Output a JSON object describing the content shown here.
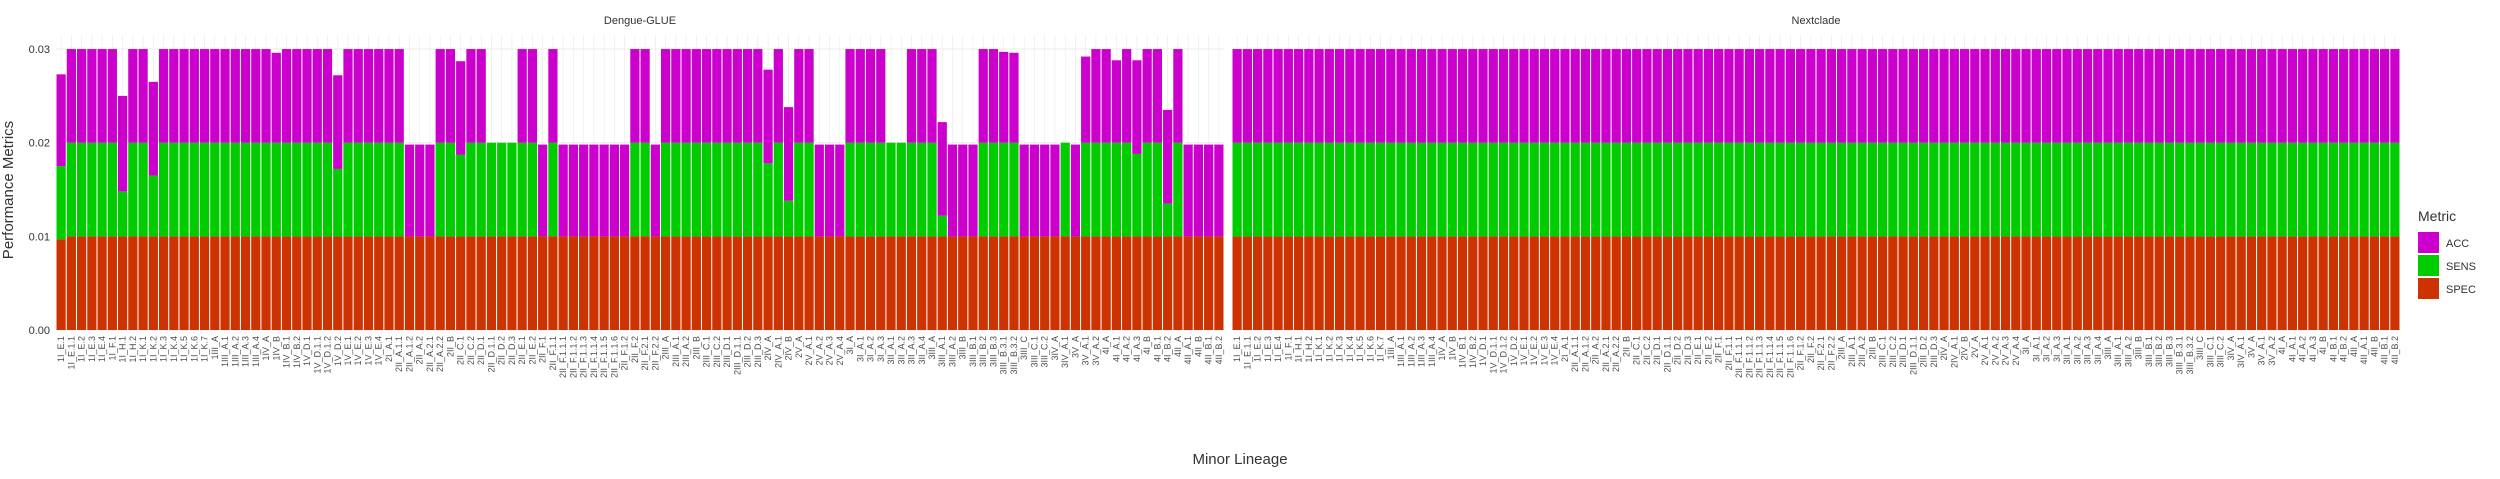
{
  "chart_data": [
    {
      "type": "bar",
      "stacked": true,
      "title": "Dengue-GLUE",
      "categories": [
        "1I_E.1",
        "1I_E.1.1",
        "1I_E.2",
        "1I_E.3",
        "1I_E.4",
        "1I_F.1",
        "1I_H.1",
        "1I_H.2",
        "1I_K.1",
        "1I_K.2",
        "1I_K.3",
        "1I_K.4",
        "1I_K.5",
        "1I_K.6",
        "1I_K.7",
        "1III_A",
        "1III_A.1",
        "1III_A.2",
        "1III_A.3",
        "1III_A.4",
        "1IV_A",
        "1IV_B",
        "1IV_B.1",
        "1IV_B.2",
        "1V_D.1",
        "1V_D.1.1",
        "1V_D.1.2",
        "1V_D.2",
        "1V_E.1",
        "1V_E.2",
        "1V_E.3",
        "1V_E.4",
        "2I_A.1",
        "2II_A.1.1",
        "2II_A.1.2",
        "2II_A.2",
        "2II_A.2.1",
        "2II_A.2.2",
        "2II_B",
        "2II_C.1",
        "2II_C.2",
        "2II_D.1",
        "2II_D.1.1",
        "2II_D.2",
        "2II_D.3",
        "2II_E.1",
        "2II_E.2",
        "2II_F.1",
        "2II_F.1.1",
        "2II_F.1.1.1",
        "2II_F.1.1.2",
        "2II_F.1.1.3",
        "2II_F.1.1.4",
        "2II_F.1.1.5",
        "2II_F.1.1.6",
        "2II_F.1.2",
        "2II_F.2",
        "2II_F.2.1",
        "2II_F.2.2",
        "2III_A",
        "2III_A.1",
        "2III_A.2",
        "2III_B",
        "2III_C.1",
        "2III_C.2",
        "2III_D.1",
        "2III_D.1.1",
        "2III_D.2",
        "2III_D.3",
        "2IV_A",
        "2IV_A.1",
        "2IV_B",
        "2V_A",
        "2V_A.1",
        "2V_A.2",
        "2V_A.3",
        "2V_A.4",
        "3I_A",
        "3I_A.1",
        "3I_A.2",
        "3I_A.3",
        "3II_A.1",
        "3II_A.2",
        "3II_A.3",
        "3II_A.4",
        "3III_A",
        "3III_A.1",
        "3III_A.2",
        "3III_B",
        "3III_B.1",
        "3III_B.2",
        "3III_B.3",
        "3III_B.3.1",
        "3III_B.3.2",
        "3III_C",
        "3III_C.1",
        "3III_C.2",
        "3IV_A",
        "3IV_A.1",
        "3V_A",
        "3V_A.1",
        "3V_A.2",
        "4I_A",
        "4I_A.1",
        "4I_A.2",
        "4I_A.3",
        "4I_B",
        "4I_B.1",
        "4I_B.2",
        "4II_A",
        "4II_A.1",
        "4II_B",
        "4II_B.1",
        "4II_B.2"
      ],
      "series": [
        {
          "name": "ACC",
          "color": "#cc00cc",
          "values": [
            0.0098,
            0.01,
            0.01,
            0.01,
            0.01,
            0.01,
            0.0102,
            0.01,
            0.01,
            0.01,
            0.01,
            0.01,
            0.01,
            0.01,
            0.01,
            0.01,
            0.01,
            0.01,
            0.01,
            0.01,
            0.01,
            0.0096,
            0.01,
            0.01,
            0.01,
            0.01,
            0.01,
            0.01,
            0.01,
            0.01,
            0.01,
            0.01,
            0.01,
            0.01,
            0.0098,
            0.0098,
            0.0098,
            0.01,
            0.01,
            0.01,
            0.01,
            0.01,
            0,
            0,
            0,
            0.01,
            0.01,
            0.0098,
            0.01,
            0.0098,
            0.0098,
            0.0098,
            0.0098,
            0.0098,
            0.0098,
            0.0098,
            0.01,
            0.01,
            0.0098,
            0.01,
            0.01,
            0.01,
            0.01,
            0.01,
            0.01,
            0.01,
            0.01,
            0.01,
            0.01,
            0.01,
            0.01,
            0.01,
            0.01,
            0.01,
            0.0098,
            0.0098,
            0.0098,
            0.01,
            0.01,
            0.01,
            0.01,
            0,
            0,
            0.01,
            0.01,
            0.01,
            0.01,
            0.0098,
            0.0098,
            0.0098,
            0.01,
            0.01,
            0.0097,
            0.0096,
            0.0098,
            0.0098,
            0.0098,
            0.0098,
            0,
            0.0098,
            0.0092,
            0.01,
            0.01,
            0.0088,
            0.01,
            0.01,
            0.01,
            0.01,
            0.01,
            0.01,
            0.0098,
            0.0098,
            0.0098,
            0.0098
          ]
        },
        {
          "name": "SENS",
          "color": "#00cc00",
          "values": [
            0.0078,
            0.01,
            0.01,
            0.01,
            0.01,
            0.01,
            0.0048,
            0.01,
            0.01,
            0.0065,
            0.01,
            0.01,
            0.01,
            0.01,
            0.01,
            0.01,
            0.01,
            0.01,
            0.01,
            0.01,
            0.01,
            0.01,
            0.01,
            0.01,
            0.01,
            0.01,
            0.01,
            0.0072,
            0.01,
            0.01,
            0.01,
            0.01,
            0.01,
            0.01,
            0,
            0,
            0,
            0.01,
            0.01,
            0.0087,
            0.01,
            0.01,
            0.01,
            0.01,
            0.01,
            0.01,
            0.01,
            0,
            0.01,
            0,
            0,
            0,
            0,
            0,
            0,
            0,
            0.01,
            0.01,
            0,
            0.01,
            0.01,
            0.01,
            0.01,
            0.01,
            0.01,
            0.01,
            0.01,
            0.01,
            0.01,
            0.0078,
            0.01,
            0.0038,
            0.01,
            0.01,
            0,
            0,
            0,
            0.01,
            0.01,
            0.01,
            0.01,
            0.01,
            0.01,
            0.01,
            0.01,
            0.01,
            0.0022,
            0,
            0,
            0,
            0.01,
            0.01,
            0.01,
            0.01,
            0,
            0,
            0,
            0,
            0.01,
            0,
            0.01,
            0.01,
            0.01,
            0.01,
            0.01,
            0.0088,
            0.01,
            0.01,
            0.0035,
            0.01,
            0,
            0,
            0,
            0
          ]
        },
        {
          "name": "SPEC",
          "color": "#cc3300",
          "values": [
            0.0097,
            0.01,
            0.01,
            0.01,
            0.01,
            0.01,
            0.01,
            0.01,
            0.01,
            0.01,
            0.01,
            0.01,
            0.01,
            0.01,
            0.01,
            0.01,
            0.01,
            0.01,
            0.01,
            0.01,
            0.01,
            0.01,
            0.01,
            0.01,
            0.01,
            0.01,
            0.01,
            0.01,
            0.01,
            0.01,
            0.01,
            0.01,
            0.01,
            0.01,
            0.01,
            0.01,
            0.01,
            0.01,
            0.01,
            0.01,
            0.01,
            0.01,
            0.01,
            0.01,
            0.01,
            0.01,
            0.01,
            0.01,
            0.01,
            0.01,
            0.01,
            0.01,
            0.01,
            0.01,
            0.01,
            0.01,
            0.01,
            0.01,
            0.01,
            0.01,
            0.01,
            0.01,
            0.01,
            0.01,
            0.01,
            0.01,
            0.01,
            0.01,
            0.01,
            0.01,
            0.01,
            0.01,
            0.01,
            0.01,
            0.01,
            0.01,
            0.01,
            0.01,
            0.01,
            0.01,
            0.01,
            0.01,
            0.01,
            0.01,
            0.01,
            0.01,
            0.01,
            0.01,
            0.01,
            0.01,
            0.01,
            0.01,
            0.01,
            0.01,
            0.01,
            0.01,
            0.01,
            0.01,
            0.01,
            0.01,
            0.01,
            0.01,
            0.01,
            0.01,
            0.01,
            0.01,
            0.01,
            0.01,
            0.01,
            0.01,
            0.01,
            0.01,
            0.01,
            0.01
          ]
        }
      ],
      "ylim": [
        0,
        0.0315
      ],
      "yticks": [
        {
          "value": 0,
          "label": "0.00"
        },
        {
          "value": 0.01,
          "label": "0.01"
        },
        {
          "value": 0.02,
          "label": "0.02"
        },
        {
          "value": 0.03,
          "label": "0.03"
        }
      ]
    },
    {
      "type": "bar",
      "stacked": true,
      "title": "Nextclade",
      "categories": [
        "1I_E.1",
        "1I_E.1.1",
        "1I_E.2",
        "1I_E.3",
        "1I_E.4",
        "1I_F.1",
        "1I_H.1",
        "1I_H.2",
        "1I_K.1",
        "1I_K.2",
        "1I_K.3",
        "1I_K.4",
        "1I_K.5",
        "1I_K.6",
        "1I_K.7",
        "1III_A",
        "1III_A.1",
        "1III_A.2",
        "1III_A.3",
        "1III_A.4",
        "1IV_A",
        "1IV_B",
        "1IV_B.1",
        "1IV_B.2",
        "1V_D.1",
        "1V_D.1.1",
        "1V_D.1.2",
        "1V_D.2",
        "1V_E.1",
        "1V_E.2",
        "1V_E.3",
        "1V_E.4",
        "2I_A.1",
        "2II_A.1.1",
        "2II_A.1.2",
        "2II_A.2",
        "2II_A.2.1",
        "2II_A.2.2",
        "2II_B",
        "2II_C.1",
        "2II_C.2",
        "2II_D.1",
        "2II_D.1.1",
        "2II_D.2",
        "2II_D.3",
        "2II_E.1",
        "2II_E.2",
        "2II_F.1",
        "2II_F.1.1",
        "2II_F.1.1.1",
        "2II_F.1.1.2",
        "2II_F.1.1.3",
        "2II_F.1.1.4",
        "2II_F.1.1.5",
        "2II_F.1.1.6",
        "2II_F.1.2",
        "2II_F.2",
        "2II_F.2.1",
        "2II_F.2.2",
        "2III_A",
        "2III_A.1",
        "2III_A.2",
        "2III_B",
        "2III_C.1",
        "2III_C.2",
        "2III_D.1",
        "2III_D.1.1",
        "2III_D.2",
        "2III_D.3",
        "2IV_A",
        "2IV_A.1",
        "2IV_B",
        "2V_A",
        "2V_A.1",
        "2V_A.2",
        "2V_A.3",
        "2V_A.4",
        "3I_A",
        "3I_A.1",
        "3I_A.2",
        "3I_A.3",
        "3II_A.1",
        "3II_A.2",
        "3II_A.3",
        "3II_A.4",
        "3III_A",
        "3III_A.1",
        "3III_A.2",
        "3III_B",
        "3III_B.1",
        "3III_B.2",
        "3III_B.3",
        "3III_B.3.1",
        "3III_B.3.2",
        "3III_C",
        "3III_C.1",
        "3III_C.2",
        "3IV_A",
        "3IV_A.1",
        "3V_A",
        "3V_A.1",
        "3V_A.2",
        "4I_A",
        "4I_A.1",
        "4I_A.2",
        "4I_A.3",
        "4I_B",
        "4I_B.1",
        "4I_B.2",
        "4II_A",
        "4II_A.1",
        "4II_B",
        "4II_B.1",
        "4II_B.2"
      ],
      "series": [
        {
          "name": "ACC",
          "color": "#cc00cc",
          "values": [
            0.01,
            0.01,
            0.01,
            0.01,
            0.01,
            0.01,
            0.01,
            0.01,
            0.01,
            0.01,
            0.01,
            0.01,
            0.01,
            0.01,
            0.01,
            0.01,
            0.01,
            0.01,
            0.01,
            0.01,
            0.01,
            0.01,
            0.01,
            0.01,
            0.01,
            0.01,
            0.01,
            0.01,
            0.01,
            0.01,
            0.01,
            0.01,
            0.01,
            0.01,
            0.01,
            0.01,
            0.01,
            0.01,
            0.01,
            0.01,
            0.01,
            0.01,
            0.01,
            0.01,
            0.01,
            0.01,
            0.01,
            0.01,
            0.01,
            0.01,
            0.01,
            0.01,
            0.01,
            0.01,
            0.01,
            0.01,
            0.01,
            0.01,
            0.01,
            0.01,
            0.01,
            0.01,
            0.01,
            0.01,
            0.01,
            0.01,
            0.01,
            0.01,
            0.01,
            0.01,
            0.01,
            0.01,
            0.01,
            0.01,
            0.01,
            0.01,
            0.01,
            0.01,
            0.01,
            0.01,
            0.01,
            0.01,
            0.01,
            0.01,
            0.01,
            0.01,
            0.01,
            0.01,
            0.01,
            0.01,
            0.01,
            0.01,
            0.01,
            0.01,
            0.01,
            0.01,
            0.01,
            0.01,
            0.01,
            0.01,
            0.01,
            0.01,
            0.01,
            0.01,
            0.01,
            0.01,
            0.01,
            0.01,
            0.01,
            0.01,
            0.01,
            0.01,
            0.01,
            0.01
          ]
        },
        {
          "name": "SENS",
          "color": "#00cc00",
          "values": [
            0.01,
            0.01,
            0.01,
            0.01,
            0.01,
            0.01,
            0.01,
            0.01,
            0.01,
            0.01,
            0.01,
            0.01,
            0.01,
            0.01,
            0.01,
            0.01,
            0.01,
            0.01,
            0.01,
            0.01,
            0.01,
            0.01,
            0.01,
            0.01,
            0.01,
            0.01,
            0.01,
            0.01,
            0.01,
            0.01,
            0.01,
            0.01,
            0.01,
            0.01,
            0.01,
            0.01,
            0.01,
            0.01,
            0.01,
            0.01,
            0.01,
            0.01,
            0.01,
            0.01,
            0.01,
            0.01,
            0.01,
            0.01,
            0.01,
            0.01,
            0.01,
            0.01,
            0.01,
            0.01,
            0.01,
            0.01,
            0.01,
            0.01,
            0.01,
            0.01,
            0.01,
            0.01,
            0.01,
            0.01,
            0.01,
            0.01,
            0.01,
            0.01,
            0.01,
            0.01,
            0.01,
            0.01,
            0.01,
            0.01,
            0.01,
            0.01,
            0.01,
            0.01,
            0.01,
            0.01,
            0.01,
            0.01,
            0.01,
            0.01,
            0.01,
            0.01,
            0.01,
            0.01,
            0.01,
            0.01,
            0.01,
            0.01,
            0.01,
            0.01,
            0.01,
            0.01,
            0.01,
            0.01,
            0.01,
            0.01,
            0.01,
            0.01,
            0.01,
            0.01,
            0.01,
            0.01,
            0.01,
            0.01,
            0.01,
            0.01,
            0.01,
            0.01,
            0.01,
            0.01
          ]
        },
        {
          "name": "SPEC",
          "color": "#cc3300",
          "values": [
            0.01,
            0.01,
            0.01,
            0.01,
            0.01,
            0.01,
            0.01,
            0.01,
            0.01,
            0.01,
            0.01,
            0.01,
            0.01,
            0.01,
            0.01,
            0.01,
            0.01,
            0.01,
            0.01,
            0.01,
            0.01,
            0.01,
            0.01,
            0.01,
            0.01,
            0.01,
            0.01,
            0.01,
            0.01,
            0.01,
            0.01,
            0.01,
            0.01,
            0.01,
            0.01,
            0.01,
            0.01,
            0.01,
            0.01,
            0.01,
            0.01,
            0.01,
            0.01,
            0.01,
            0.01,
            0.01,
            0.01,
            0.01,
            0.01,
            0.01,
            0.01,
            0.01,
            0.01,
            0.01,
            0.01,
            0.01,
            0.01,
            0.01,
            0.01,
            0.01,
            0.01,
            0.01,
            0.01,
            0.01,
            0.01,
            0.01,
            0.01,
            0.01,
            0.01,
            0.01,
            0.01,
            0.01,
            0.01,
            0.01,
            0.01,
            0.01,
            0.01,
            0.01,
            0.01,
            0.01,
            0.01,
            0.01,
            0.01,
            0.01,
            0.01,
            0.01,
            0.01,
            0.01,
            0.01,
            0.01,
            0.01,
            0.01,
            0.01,
            0.01,
            0.01,
            0.01,
            0.01,
            0.01,
            0.01,
            0.01,
            0.01,
            0.01,
            0.01,
            0.01,
            0.01,
            0.01,
            0.01,
            0.01,
            0.01,
            0.01,
            0.01,
            0.01,
            0.01,
            0.01
          ]
        }
      ]
    }
  ],
  "y_label": "Performance Metrics",
  "x_label": "Minor Lineage",
  "legend": {
    "title": "Metric",
    "position": "right"
  }
}
